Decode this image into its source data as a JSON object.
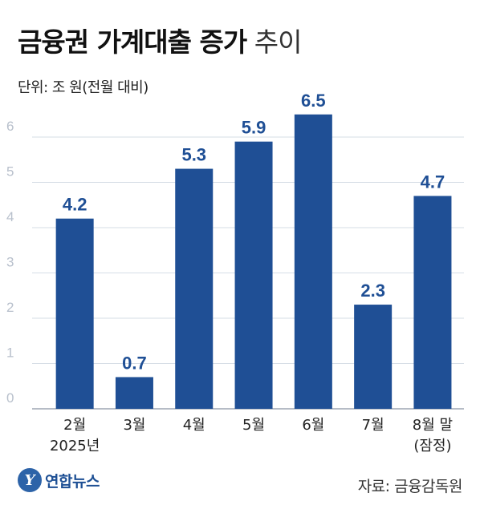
{
  "title": {
    "bold": "금융권 가계대출 증가",
    "light": "추이"
  },
  "unit": "단위: 조 원(전월 대비)",
  "source": "자료: 금융감독원",
  "logo": {
    "text": "연합뉴스",
    "mark": "Y"
  },
  "colors": {
    "bar": "#1f4f95",
    "value_label": "#1f4f95",
    "grid": "#d6dde6",
    "tick": "#b8c0cc"
  },
  "chart_data": {
    "type": "bar",
    "title": "금융권 가계대출 증가 추이",
    "unit": "조 원(전월 대비)",
    "categories": [
      "2월\n2025년",
      "3월",
      "4월",
      "5월",
      "6월",
      "7월",
      "8월 말\n(잠정)"
    ],
    "values": [
      4.2,
      0.7,
      5.3,
      5.9,
      6.5,
      2.3,
      4.7
    ],
    "value_labels": [
      "4.2",
      "0.7",
      "5.3",
      "5.9",
      "6.5",
      "2.3",
      "4.7"
    ],
    "yticks": [
      0,
      1,
      2,
      3,
      4,
      5,
      6
    ],
    "ylim": [
      0,
      6.5
    ],
    "grid": true,
    "xlabel": "",
    "ylabel": ""
  }
}
